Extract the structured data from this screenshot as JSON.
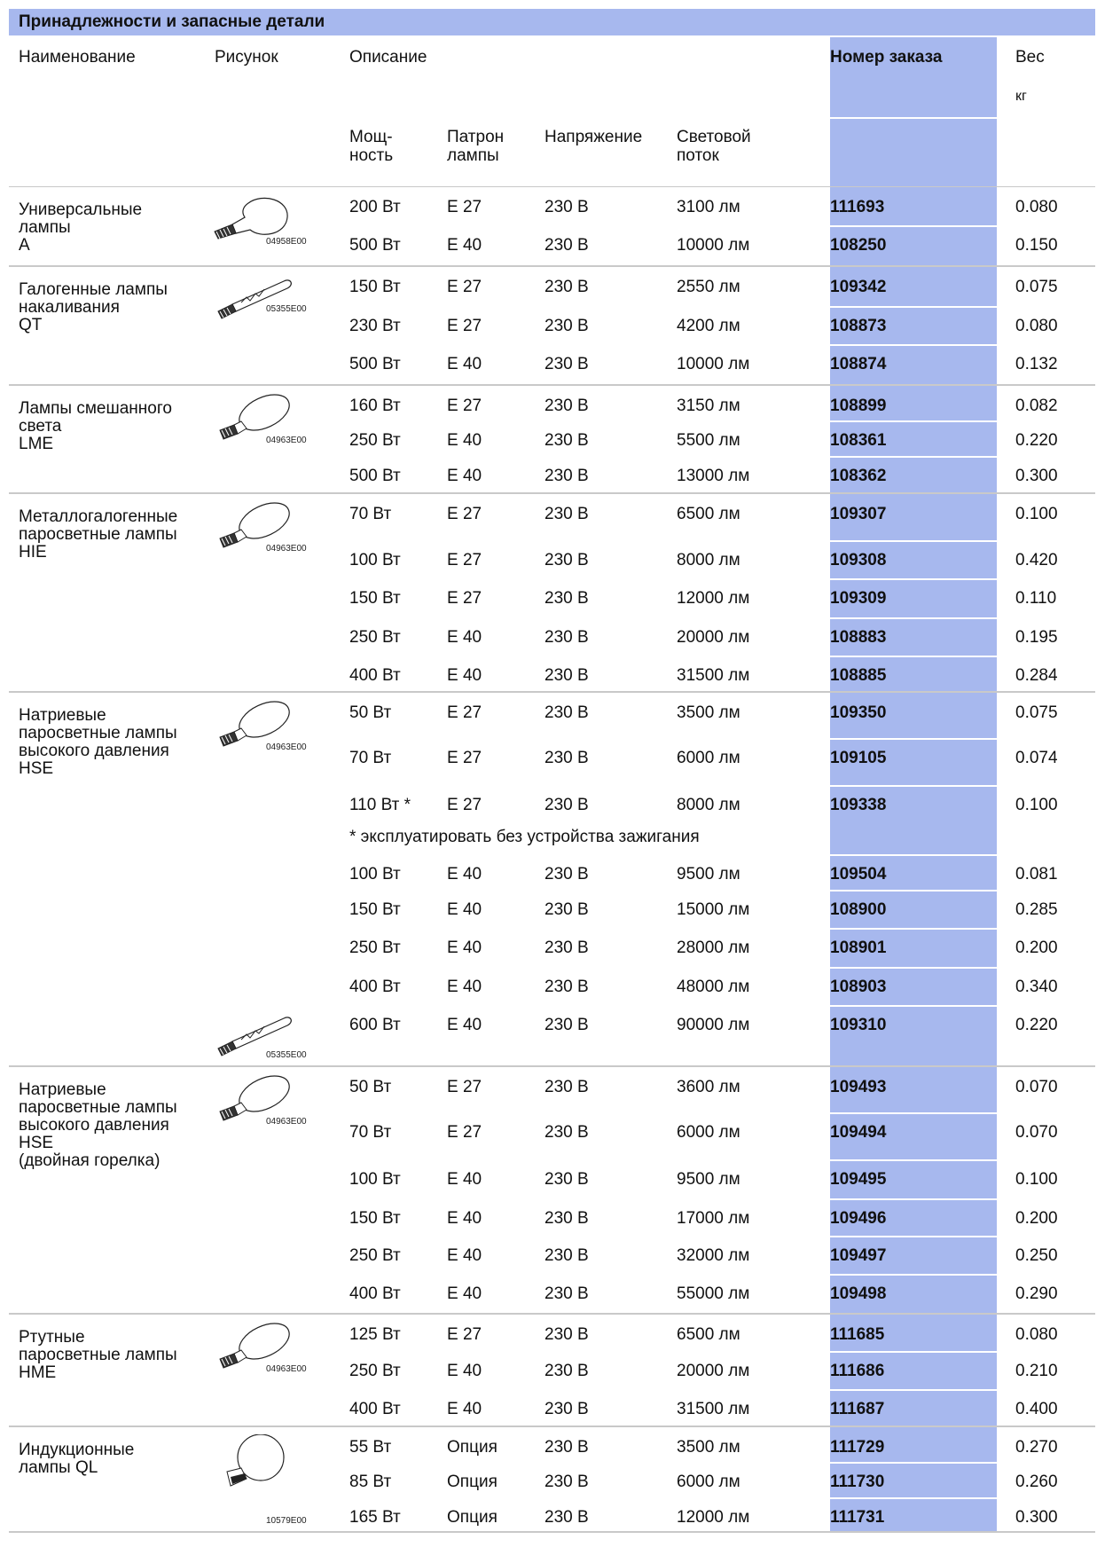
{
  "title": "Принадлежности и запасные детали",
  "header": {
    "name": "Наименование",
    "picture": "Рисунок",
    "description": "Описание",
    "order_number": "Номер заказа",
    "weight": "Вес",
    "weight_unit": "кг",
    "power": "Мощ-\nность",
    "base": "Патрон\nлампы",
    "voltage": "Напряжение",
    "luminous_flux": "Световой\nпоток"
  },
  "groups": [
    {
      "name": "Универсальные\nлампы\nA",
      "img_code": "04958E00",
      "rows": [
        {
          "power": "200 Вт",
          "base": "E 27",
          "voltage": "230 В",
          "flux": "3100 лм",
          "order": "111693",
          "weight": "0.080"
        },
        {
          "power": "500 Вт",
          "base": "E 40",
          "voltage": "230 В",
          "flux": "10000 лм",
          "order": "108250",
          "weight": "0.150"
        }
      ]
    },
    {
      "name": "Галогенные лампы\nнакаливания\nQT",
      "img_code": "05355E00",
      "rows": [
        {
          "power": "150 Вт",
          "base": "E 27",
          "voltage": "230 В",
          "flux": "2550 лм",
          "order": "109342",
          "weight": "0.075"
        },
        {
          "power": "230 Вт",
          "base": "E 27",
          "voltage": "230 В",
          "flux": "4200 лм",
          "order": "108873",
          "weight": "0.080"
        },
        {
          "power": "500 Вт",
          "base": "E 40",
          "voltage": "230 В",
          "flux": "10000 лм",
          "order": "108874",
          "weight": "0.132"
        }
      ]
    },
    {
      "name": "Лампы смешанного\nсвета\nLME",
      "img_code": "04963E00",
      "rows": [
        {
          "power": "160 Вт",
          "base": "E 27",
          "voltage": "230 В",
          "flux": "3150 лм",
          "order": "108899",
          "weight": "0.082"
        },
        {
          "power": "250 Вт",
          "base": "E 40",
          "voltage": "230 В",
          "flux": "5500 лм",
          "order": "108361",
          "weight": "0.220"
        },
        {
          "power": "500 Вт",
          "base": "E 40",
          "voltage": "230 В",
          "flux": "13000 лм",
          "order": "108362",
          "weight": "0.300"
        }
      ]
    },
    {
      "name": "Металлогалогенные\nпаросветные лампы\nHIE",
      "img_code": "04963E00",
      "rows": [
        {
          "power": "70 Вт",
          "base": "E 27",
          "voltage": "230 В",
          "flux": "6500 лм",
          "order": "109307",
          "weight": "0.100"
        },
        {
          "power": "100 Вт",
          "base": "E 27",
          "voltage": "230 В",
          "flux": "8000 лм",
          "order": "109308",
          "weight": "0.420"
        },
        {
          "power": "150 Вт",
          "base": "E 27",
          "voltage": "230 В",
          "flux": "12000 лм",
          "order": "109309",
          "weight": "0.110"
        },
        {
          "power": "250 Вт",
          "base": "E 40",
          "voltage": "230 В",
          "flux": "20000 лм",
          "order": "108883",
          "weight": "0.195"
        },
        {
          "power": "400 Вт",
          "base": "E 40",
          "voltage": "230 В",
          "flux": "31500 лм",
          "order": "108885",
          "weight": "0.284"
        }
      ]
    },
    {
      "name": "Натриевые\nпаросветные лампы\nвысокого давления\nHSE",
      "img_code": "04963E00",
      "img_code_2": "05355E00",
      "note": "* эксплуатировать без устройства зажигания",
      "rows": [
        {
          "power": "50 Вт",
          "base": "E 27",
          "voltage": "230 В",
          "flux": "3500 лм",
          "order": "109350",
          "weight": "0.075"
        },
        {
          "power": "70 Вт",
          "base": "E 27",
          "voltage": "230 В",
          "flux": "6000 лм",
          "order": "109105",
          "weight": "0.074"
        },
        {
          "power": "110 Вт *",
          "base": "E 27",
          "voltage": "230 В",
          "flux": "8000 лм",
          "order": "109338",
          "weight": "0.100"
        },
        {
          "power": "100 Вт",
          "base": "E 40",
          "voltage": "230 В",
          "flux": "9500 лм",
          "order": "109504",
          "weight": "0.081"
        },
        {
          "power": "150 Вт",
          "base": "E 40",
          "voltage": "230 В",
          "flux": "15000 лм",
          "order": "108900",
          "weight": "0.285"
        },
        {
          "power": "250 Вт",
          "base": "E 40",
          "voltage": "230 В",
          "flux": "28000 лм",
          "order": "108901",
          "weight": "0.200"
        },
        {
          "power": "400 Вт",
          "base": "E 40",
          "voltage": "230 В",
          "flux": "48000 лм",
          "order": "108903",
          "weight": "0.340"
        },
        {
          "power": "600 Вт",
          "base": "E 40",
          "voltage": "230 В",
          "flux": "90000 лм",
          "order": "109310",
          "weight": "0.220"
        }
      ]
    },
    {
      "name": "Натриевые\nпаросветные лампы\nвысокого давления\nHSE\n(двойная горелка)",
      "img_code": "04963E00",
      "rows": [
        {
          "power": "50 Вт",
          "base": "E 27",
          "voltage": "230 В",
          "flux": "3600 лм",
          "order": "109493",
          "weight": "0.070"
        },
        {
          "power": "70 Вт",
          "base": "E 27",
          "voltage": "230 В",
          "flux": "6000 лм",
          "order": "109494",
          "weight": "0.070"
        },
        {
          "power": "100 Вт",
          "base": "E 40",
          "voltage": "230 В",
          "flux": "9500 лм",
          "order": "109495",
          "weight": "0.100"
        },
        {
          "power": "150 Вт",
          "base": "E 40",
          "voltage": "230 В",
          "flux": "17000 лм",
          "order": "109496",
          "weight": "0.200"
        },
        {
          "power": "250 Вт",
          "base": "E 40",
          "voltage": "230 В",
          "flux": "32000 лм",
          "order": "109497",
          "weight": "0.250"
        },
        {
          "power": "400 Вт",
          "base": "E 40",
          "voltage": "230 В",
          "flux": "55000 лм",
          "order": "109498",
          "weight": "0.290"
        }
      ]
    },
    {
      "name": "Ртутные\nпаросветные лампы\nHME",
      "img_code": "04963E00",
      "rows": [
        {
          "power": "125 Вт",
          "base": "E 27",
          "voltage": "230 В",
          "flux": "6500 лм",
          "order": "111685",
          "weight": "0.080"
        },
        {
          "power": "250 Вт",
          "base": "E 40",
          "voltage": "230 В",
          "flux": "20000 лм",
          "order": "111686",
          "weight": "0.210"
        },
        {
          "power": "400 Вт",
          "base": "E 40",
          "voltage": "230 В",
          "flux": "31500 лм",
          "order": "111687",
          "weight": "0.400"
        }
      ]
    },
    {
      "name": "Индукционные\nлампы QL",
      "img_code": "10579E00",
      "rows": [
        {
          "power": "55 Вт",
          "base": "Опция",
          "voltage": "230 В",
          "flux": "3500 лм",
          "order": "111729",
          "weight": "0.270"
        },
        {
          "power": "85 Вт",
          "base": "Опция",
          "voltage": "230 В",
          "flux": "6000 лм",
          "order": "111730",
          "weight": "0.260"
        },
        {
          "power": "165 Вт",
          "base": "Опция",
          "voltage": "230 В",
          "flux": "12000 лм",
          "order": "111731",
          "weight": "0.300"
        }
      ]
    }
  ]
}
